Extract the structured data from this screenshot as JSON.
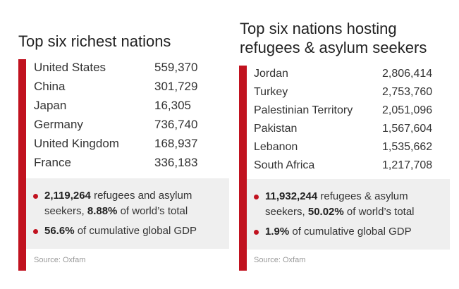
{
  "left_panel": {
    "title": "Top six richest nations",
    "rows": [
      {
        "country": "United States",
        "value": "559,370"
      },
      {
        "country": "China",
        "value": "301,729"
      },
      {
        "country": "Japan",
        "value": "16,305"
      },
      {
        "country": "Germany",
        "value": "736,740"
      },
      {
        "country": "United Kingdom",
        "value": "168,937"
      },
      {
        "country": "France",
        "value": "336,183"
      }
    ],
    "summary": {
      "refugees_value": "2,119,264",
      "refugees_text_1": " refugees and asylum seekers, ",
      "world_share": "8.88%",
      "refugees_text_2": " of world’s total",
      "gdp_value": "56.6%",
      "gdp_text": " of cumulative global GDP"
    },
    "source": "Source: Oxfam"
  },
  "right_panel": {
    "title_line1": "Top six nations hosting",
    "title_line2": "refugees & asylum seekers",
    "rows": [
      {
        "country": "Jordan",
        "value": "2,806,414"
      },
      {
        "country": "Turkey",
        "value": "2,753,760"
      },
      {
        "country": "Palestinian Territory",
        "value": "2,051,096"
      },
      {
        "country": "Pakistan",
        "value": "1,567,604"
      },
      {
        "country": "Lebanon",
        "value": "1,535,662"
      },
      {
        "country": "South Africa",
        "value": "1,217,708"
      }
    ],
    "summary": {
      "refugees_value": "11,932,244",
      "refugees_text_1": " refugees & asylum seekers, ",
      "world_share": "50.02%",
      "refugees_text_2": " of world’s total",
      "gdp_value": "1.9%",
      "gdp_text": " of cumulative global GDP"
    },
    "source": "Source: Oxfam"
  },
  "colors": {
    "accent_red": "#c1121f",
    "summary_background": "#efefef",
    "source_text": "#999999"
  }
}
